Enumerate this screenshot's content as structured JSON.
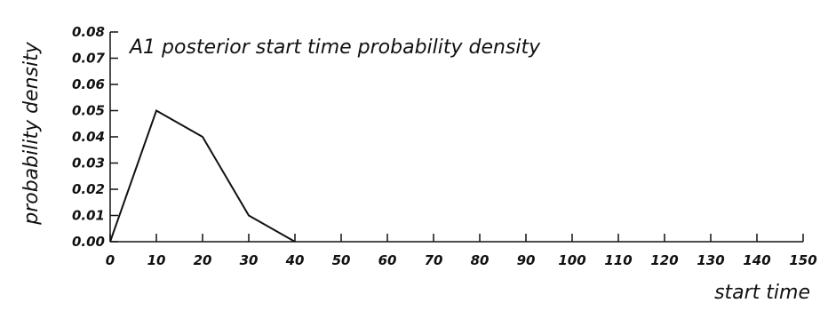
{
  "chart_data": {
    "type": "line",
    "title": "A1 posterior start time probability density",
    "xlabel": "start time",
    "ylabel": "probability density",
    "xlim": [
      0,
      150
    ],
    "ylim": [
      0,
      0.08
    ],
    "x_ticks": [
      "0",
      "10",
      "20",
      "30",
      "40",
      "50",
      "60",
      "70",
      "80",
      "90",
      "100",
      "110",
      "120",
      "130",
      "140",
      "150"
    ],
    "y_ticks": [
      "0.00",
      "0.01",
      "0.02",
      "0.03",
      "0.04",
      "0.05",
      "0.06",
      "0.07",
      "0.08"
    ],
    "grid": false,
    "series": [
      {
        "x": [
          0,
          10,
          20,
          30,
          40
        ],
        "y": [
          0.0,
          0.05,
          0.04,
          0.01,
          0.0
        ]
      }
    ]
  }
}
